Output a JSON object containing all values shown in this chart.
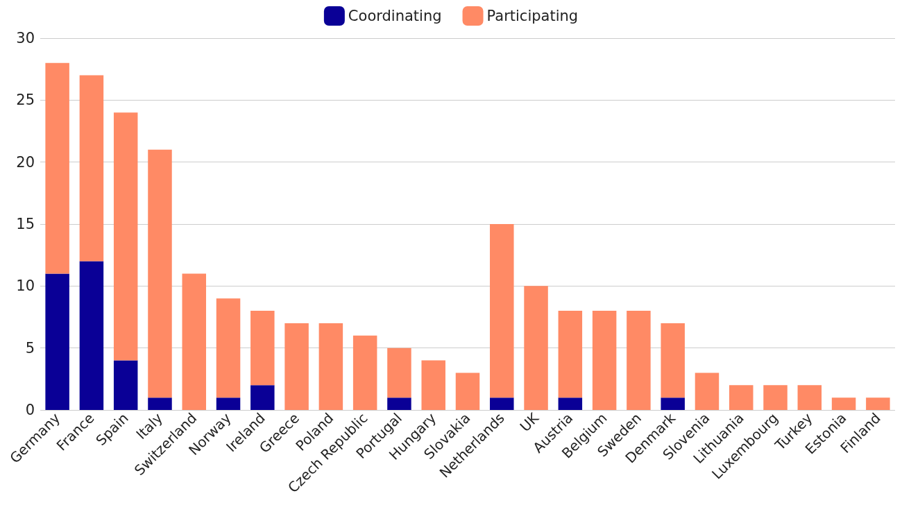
{
  "chart_data": {
    "type": "bar",
    "stacked": true,
    "legend": "top",
    "grid": "y",
    "categories": [
      "Germany",
      "France",
      "Spain",
      "Italy",
      "Switzerland",
      "Norway",
      "Ireland",
      "Greece",
      "Poland",
      "Czech Republic",
      "Portugal",
      "Hungary",
      "Slovakia",
      "Netherlands",
      "UK",
      "Austria",
      "Belgium",
      "Sweden",
      "Denmark",
      "Slovenia",
      "Lithuania",
      "Luxembourg",
      "Turkey",
      "Estonia",
      "Finland"
    ],
    "series": [
      {
        "name": "Coordinating",
        "color": "#0a0096",
        "values": [
          11,
          12,
          4,
          1,
          0,
          1,
          2,
          0,
          0,
          0,
          1,
          0,
          0,
          1,
          0,
          1,
          0,
          0,
          1,
          0,
          0,
          0,
          0,
          0,
          0
        ]
      },
      {
        "name": "Participating",
        "color": "#ff8a65",
        "values": [
          17,
          15,
          20,
          20,
          11,
          8,
          6,
          7,
          7,
          6,
          4,
          4,
          3,
          14,
          10,
          7,
          8,
          8,
          6,
          3,
          2,
          2,
          2,
          1,
          1
        ]
      }
    ],
    "ylim": [
      0,
      30
    ],
    "yticks": [
      0,
      5,
      10,
      15,
      20,
      25,
      30
    ]
  }
}
